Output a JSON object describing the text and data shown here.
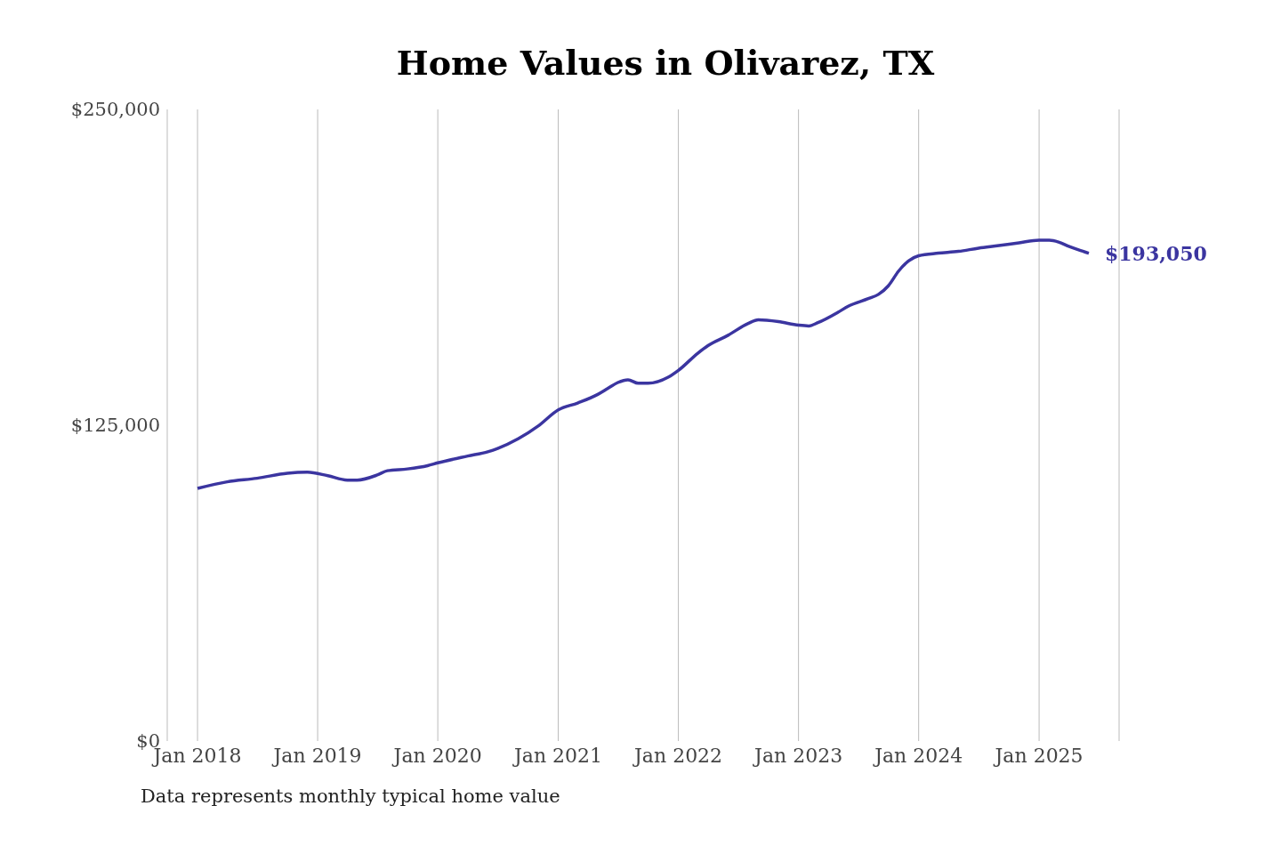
{
  "chart_data": {
    "type": "line",
    "title": "Home Values in Olivarez, TX",
    "x": [
      "2018-01",
      "2018-04",
      "2018-07",
      "2018-10",
      "2018-12",
      "2019-02",
      "2019-04",
      "2019-05",
      "2019-07",
      "2019-08",
      "2019-10",
      "2019-12",
      "2020-01",
      "2020-04",
      "2020-06",
      "2020-07",
      "2020-09",
      "2020-11",
      "2021-01",
      "2021-03",
      "2021-05",
      "2021-06",
      "2021-07",
      "2021-08",
      "2021-09",
      "2021-10",
      "2021-12",
      "2022-01",
      "2022-03",
      "2022-04",
      "2022-06",
      "2022-08",
      "2022-09",
      "2022-11",
      "2023-01",
      "2023-02",
      "2023-03",
      "2023-05",
      "2023-06",
      "2023-08",
      "2023-09",
      "2023-10",
      "2023-11",
      "2023-12",
      "2024-01",
      "2024-03",
      "2024-05",
      "2024-07",
      "2024-09",
      "2024-11",
      "2025-01",
      "2025-02",
      "2025-03",
      "2025-04",
      "2025-05",
      "2025-06"
    ],
    "series": [
      {
        "color": "#3b35a0",
        "values": [
          100000,
          102600,
          104000,
          106000,
          106400,
          105000,
          103300,
          103300,
          105300,
          107000,
          107700,
          109000,
          110100,
          112800,
          114500,
          115800,
          119600,
          124700,
          131100,
          133800,
          137200,
          139600,
          141900,
          143000,
          141600,
          141600,
          144000,
          146700,
          153500,
          156500,
          160600,
          165300,
          166700,
          166000,
          164600,
          164300,
          165600,
          169700,
          172100,
          175100,
          176800,
          180200,
          186000,
          190000,
          192100,
          193100,
          193800,
          195100,
          196100,
          197200,
          198200,
          198200,
          197500,
          195800,
          194400,
          193050
        ]
      }
    ],
    "xlim": [
      "2017-10",
      "2025-09"
    ],
    "xticks": [
      {
        "value": "2018-01",
        "label": "Jan 2018"
      },
      {
        "value": "2019-01",
        "label": "Jan 2019"
      },
      {
        "value": "2020-01",
        "label": "Jan 2020"
      },
      {
        "value": "2021-01",
        "label": "Jan 2021"
      },
      {
        "value": "2022-01",
        "label": "Jan 2022"
      },
      {
        "value": "2023-01",
        "label": "Jan 2023"
      },
      {
        "value": "2024-01",
        "label": "Jan 2024"
      },
      {
        "value": "2025-01",
        "label": "Jan 2025"
      }
    ],
    "ylim": [
      0,
      250000
    ],
    "yticks": [
      {
        "value": 0,
        "label": "$0"
      },
      {
        "value": 125000,
        "label": "$125,000"
      },
      {
        "value": 250000,
        "label": "$250,000"
      }
    ],
    "grid": "x",
    "legend": false,
    "marker": "none",
    "line_style": "solid",
    "annotations": [
      {
        "text": "$193,050",
        "x": "2025-06",
        "y": 193050
      },
      "Data represents monthly typical home value"
    ]
  }
}
